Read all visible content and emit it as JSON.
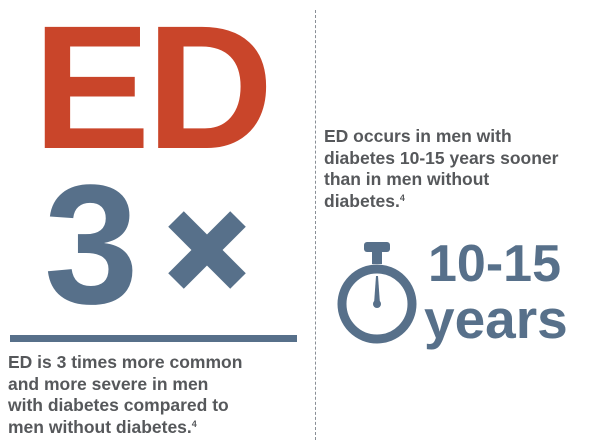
{
  "left": {
    "headline": "ED",
    "multiplier": "3",
    "statement_lines": [
      "ED is 3 times more common",
      "and more severe in men",
      "with diabetes compared to",
      "men without diabetes."
    ],
    "footnote": "4"
  },
  "right": {
    "statement_lines": [
      "ED occurs in men with",
      "diabetes 10-15 years sooner",
      "than in men without",
      "diabetes."
    ],
    "footnote": "4",
    "range": "10-15",
    "unit": "years"
  },
  "colors": {
    "accent_red": "#c9452a",
    "slate_blue": "#57708a",
    "text_gray": "#56585b"
  },
  "icons": {
    "multiply": "x-mark-icon",
    "timer": "stopwatch-icon"
  }
}
